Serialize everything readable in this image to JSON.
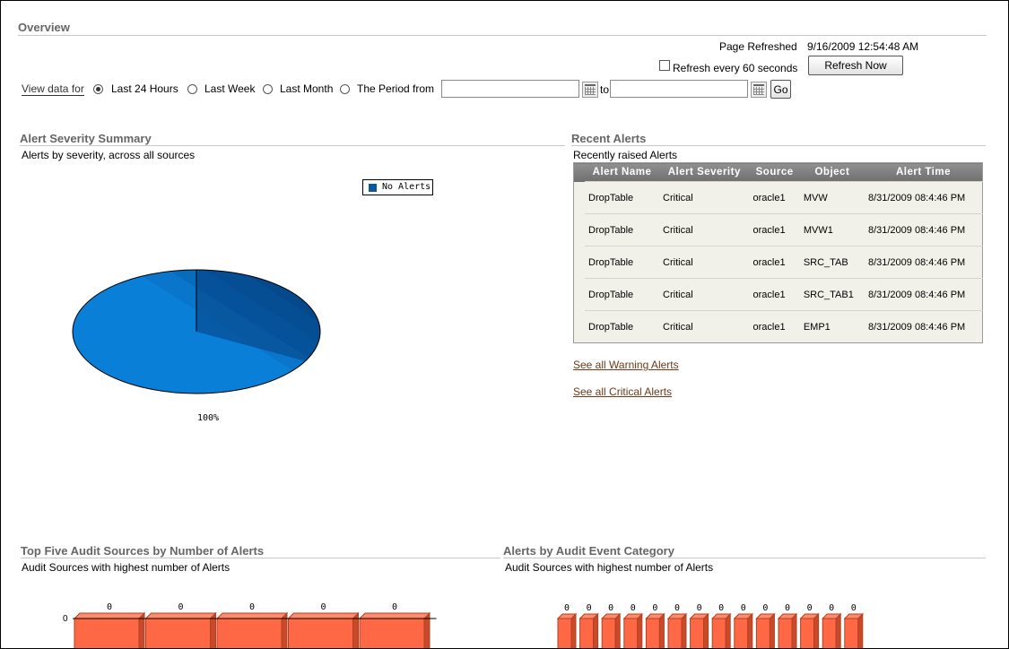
{
  "overview": {
    "title": "Overview"
  },
  "refresh": {
    "page_refreshed_label": "Page Refreshed",
    "page_refreshed_value": "9/16/2009 12:54:48 AM",
    "auto_refresh_label": "Refresh every 60 seconds",
    "auto_refresh_checked": false,
    "refresh_now_label": "Refresh Now"
  },
  "filter": {
    "view_data_for_label": "View data for",
    "options": [
      "Last 24 Hours",
      "Last Week",
      "Last Month",
      "The Period from"
    ],
    "selected": "Last 24 Hours",
    "from_value": "",
    "to_label": "to",
    "to_value": "",
    "go_label": "Go"
  },
  "severity_summary": {
    "title": "Alert Severity Summary",
    "subtitle": "Alerts by severity, across all sources",
    "legend": [
      "No Alerts"
    ],
    "pie_label": "100%",
    "colors": {
      "no_alerts": "#0a57a0",
      "shade": "#063f7a"
    }
  },
  "recent_alerts": {
    "title": "Recent Alerts",
    "subtitle": "Recently raised Alerts",
    "columns": [
      "Alert Name",
      "Alert Severity",
      "Source",
      "Object",
      "Alert Time"
    ],
    "rows": [
      [
        "DropTable",
        "Critical",
        "oracle1",
        "MVW",
        "8/31/2009 08:4:46 PM"
      ],
      [
        "DropTable",
        "Critical",
        "oracle1",
        "MVW1",
        "8/31/2009 08:4:46 PM"
      ],
      [
        "DropTable",
        "Critical",
        "oracle1",
        "SRC_TAB",
        "8/31/2009 08:4:46 PM"
      ],
      [
        "DropTable",
        "Critical",
        "oracle1",
        "SRC_TAB1",
        "8/31/2009 08:4:46 PM"
      ],
      [
        "DropTable",
        "Critical",
        "oracle1",
        "EMP1",
        "8/31/2009 08:4:46 PM"
      ]
    ],
    "see_warning_label": "See all Warning Alerts",
    "see_critical_label": "See all Critical Alerts"
  },
  "top_sources": {
    "title": "Top Five Audit Sources by Number of Alerts",
    "subtitle": "Audit Sources with highest number of Alerts",
    "axis_label": "0",
    "bar_color": "#ff6845"
  },
  "by_category": {
    "title": "Alerts by Audit Event Category",
    "subtitle": "Audit Sources with highest number of Alerts",
    "bar_color": "#ff6845"
  },
  "chart_data": [
    {
      "type": "pie",
      "categories": [
        "No Alerts"
      ],
      "values": [
        100
      ],
      "labels": [
        "100%"
      ],
      "legend": "top-right"
    },
    {
      "type": "bar",
      "categories": [
        "",
        "",
        "",
        "",
        ""
      ],
      "values": [
        0,
        0,
        0,
        0,
        0
      ],
      "data_labels": [
        "0",
        "0",
        "0",
        "0",
        "0"
      ],
      "ytick_labels": [
        "0"
      ]
    },
    {
      "type": "bar",
      "categories": [
        "",
        "",
        "",
        "",
        "",
        "",
        "",
        "",
        "",
        "",
        "",
        "",
        "",
        ""
      ],
      "values": [
        0,
        0,
        0,
        0,
        0,
        0,
        0,
        0,
        0,
        0,
        0,
        0,
        0,
        0
      ],
      "data_labels": [
        "0",
        "0",
        "0",
        "0",
        "0",
        "0",
        "0",
        "0",
        "0",
        "0",
        "0",
        "0",
        "0",
        "0"
      ]
    }
  ]
}
